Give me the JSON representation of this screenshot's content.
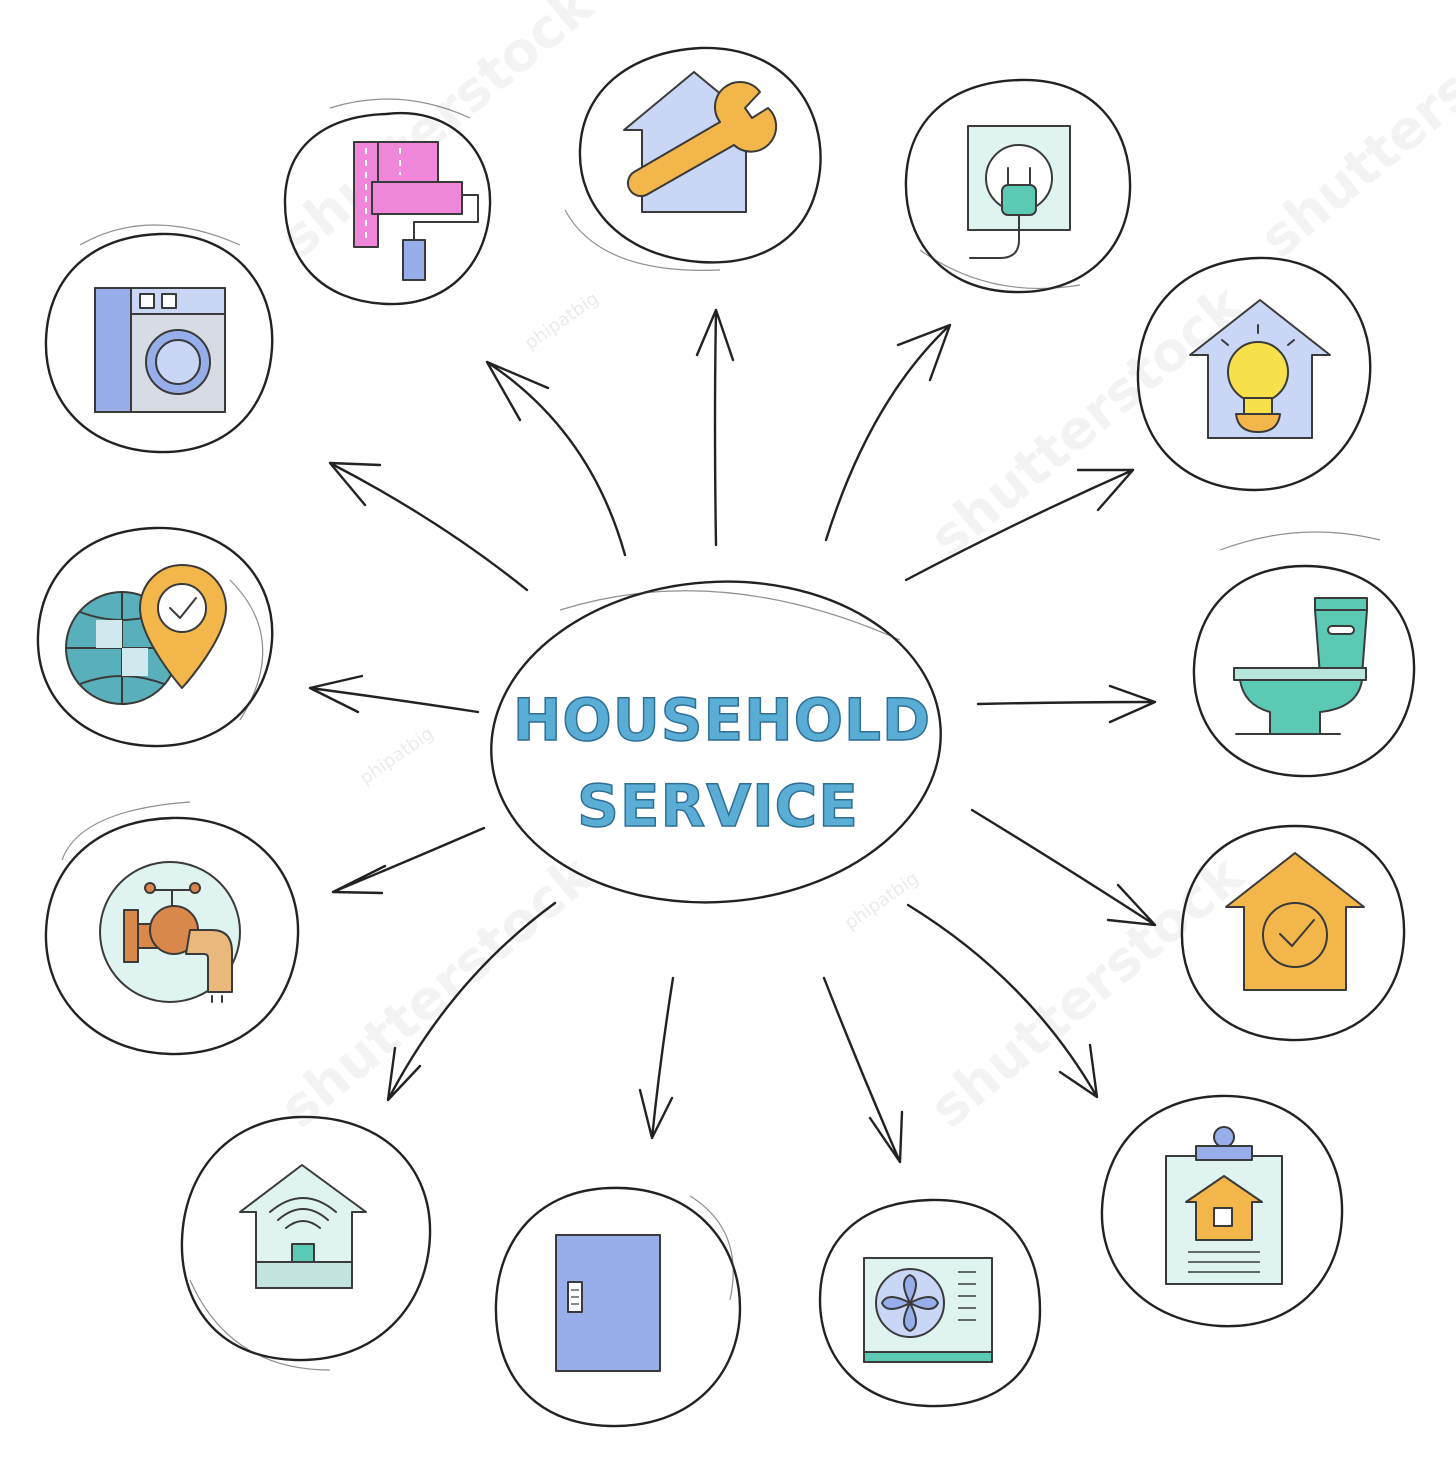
{
  "center": {
    "line1": "HOUSEHOLD",
    "line2": "SERVICE",
    "text_color": "#5aaed6",
    "text_stroke": "#2f6f96"
  },
  "watermarks": {
    "main": "shutterstock",
    "author": "phipatbig"
  },
  "nodes": [
    {
      "icon": "paint-roller-icon"
    },
    {
      "icon": "house-repair-wrench-icon"
    },
    {
      "icon": "electric-plug-socket-icon"
    },
    {
      "icon": "washing-machine-icon"
    },
    {
      "icon": "house-light-bulb-icon"
    },
    {
      "icon": "globe-location-check-icon"
    },
    {
      "icon": "toilet-icon"
    },
    {
      "icon": "water-tap-icon"
    },
    {
      "icon": "house-check-icon"
    },
    {
      "icon": "smart-home-wifi-icon"
    },
    {
      "icon": "door-icon"
    },
    {
      "icon": "air-conditioner-unit-icon"
    },
    {
      "icon": "house-clipboard-icon"
    }
  ],
  "colors": {
    "lavender": "#c9d6f5",
    "blue": "#97aeea",
    "pink": "#ef86da",
    "orange": "#f2b64b",
    "yellow": "#f8e04a",
    "teal": "#5cc9b4",
    "mint": "#dff3f0",
    "copper": "#d9874a",
    "globe": "#5ab0ba"
  }
}
